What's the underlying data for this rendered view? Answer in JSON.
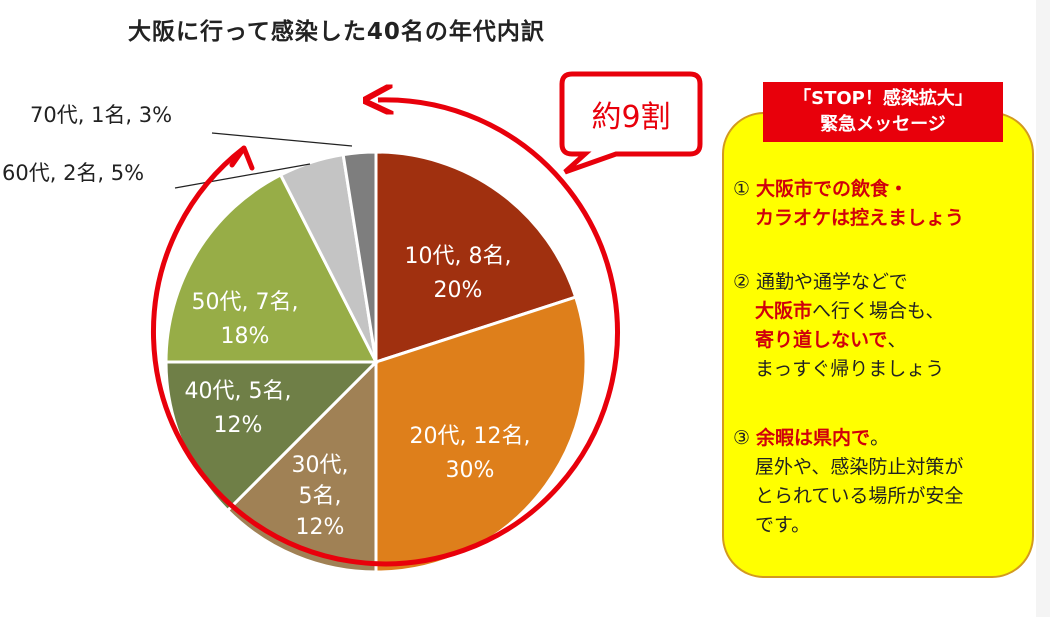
{
  "chart_data": {
    "type": "pie",
    "title": "大阪に行って感染した40名の年代内訳",
    "slices": [
      {
        "category": "10代",
        "count": 8,
        "percent": 20,
        "label_line1": "10代, 8名,",
        "label_line2": "20%",
        "color": "#a0300f"
      },
      {
        "category": "20代",
        "count": 12,
        "percent": 30,
        "label_line1": "20代, 12名,",
        "label_line2": "30%",
        "color": "#de7f1b"
      },
      {
        "category": "30代",
        "count": 5,
        "percent": 12,
        "label_line1": "30代,",
        "label_line2": "5名,",
        "label_line3": "12%",
        "color": "#a08155"
      },
      {
        "category": "40代",
        "count": 5,
        "percent": 12,
        "label_line1": "40代, 5名,",
        "label_line2": "12%",
        "color": "#6f7f47"
      },
      {
        "category": "50代",
        "count": 7,
        "percent": 18,
        "label_line1": "50代, 7名,",
        "label_line2": "18%",
        "color": "#97ad47"
      },
      {
        "category": "60代",
        "count": 2,
        "percent": 5,
        "label": "60代, 2名, 5%",
        "color": "#c4c4c4"
      },
      {
        "category": "70代",
        "count": 1,
        "percent": 3,
        "label": "70代, 1名, 3%",
        "color": "#7e7e7e"
      }
    ],
    "annotation": "約9割",
    "annotation_color": "#e8000b"
  },
  "panel": {
    "title_line1": "「STOP！感染拡大」",
    "title_line2": "緊急メッセージ",
    "bg_color": "#ffff00",
    "accent_color": "#e8000b",
    "items": [
      {
        "num": "①",
        "line1": "大阪市での飲食・",
        "line2": "カラオケは控えましょう"
      },
      {
        "num": "②",
        "line1": "通勤や通学などで",
        "line2_red": "大阪市",
        "line2_rest": "へ行く場合も、",
        "line3_red": "寄り道しないで",
        "line3_rest": "、",
        "line4": "まっすぐ帰りましょう"
      },
      {
        "num": "③",
        "line1_red": "余暇は県内で",
        "line1_rest": "。",
        "line2": "屋外や、感染防止対策が",
        "line3": "とられている場所が安全",
        "line4": "です。"
      }
    ]
  }
}
